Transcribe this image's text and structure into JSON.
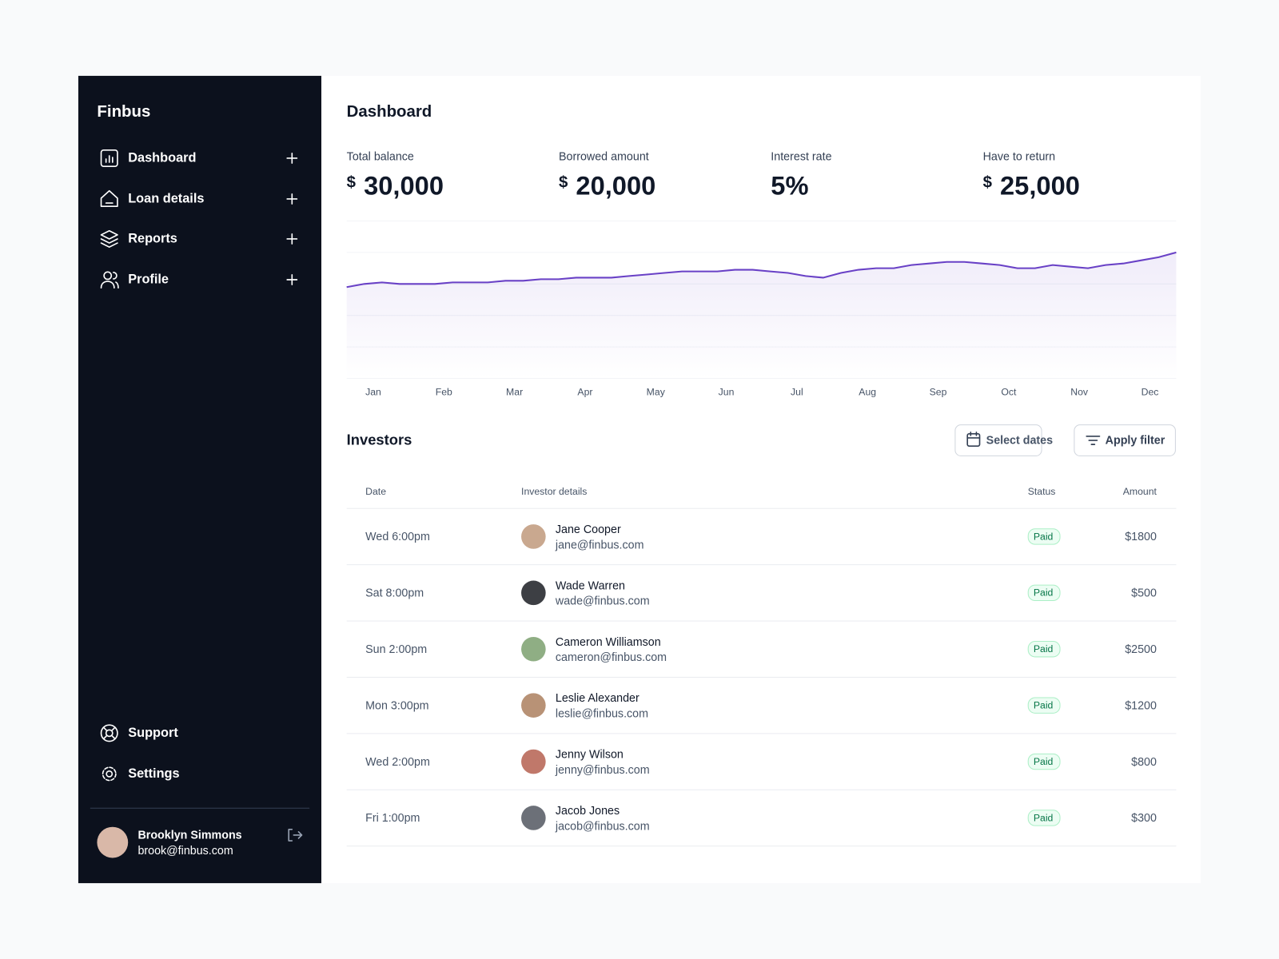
{
  "sidebar": {
    "brand": "Finbus",
    "nav": [
      "Dashboard",
      "Loan details",
      "Reports",
      "Profile"
    ],
    "footer_nav": [
      "Support",
      "Settings"
    ],
    "user": {
      "name": "Brooklyn Simmons",
      "email": "brook@finbus.com"
    }
  },
  "header": {
    "title": "Dashboard"
  },
  "stats": [
    {
      "label": "Total balance",
      "currency": "$",
      "value": "30,000"
    },
    {
      "label": "Borrowed amount",
      "currency": "$",
      "value": "20,000"
    },
    {
      "label": "Interest rate",
      "value": "5%"
    },
    {
      "label": "Have to return",
      "currency": "$",
      "value": "25,000"
    }
  ],
  "chart_data": {
    "type": "area",
    "color": "#6941c6",
    "ylim": [
      0,
      100
    ],
    "categories": [
      null,
      "Jan",
      null,
      null,
      null,
      "Feb",
      null,
      null,
      null,
      "Mar",
      null,
      null,
      null,
      "Apr",
      null,
      null,
      null,
      "May",
      null,
      null,
      null,
      "Jun",
      null,
      null,
      null,
      "Jul",
      null,
      null,
      null,
      "Aug",
      null,
      null,
      null,
      "Sep",
      null,
      null,
      null,
      "Oct",
      null,
      null,
      null,
      "Nov",
      null,
      null,
      null,
      "Dec",
      null,
      null
    ],
    "values": [
      58,
      60,
      61,
      60,
      60,
      60,
      61,
      61,
      61,
      62,
      62,
      63,
      63,
      64,
      64,
      64,
      65,
      66,
      67,
      68,
      68,
      68,
      69,
      69,
      68,
      67,
      65,
      64,
      67,
      69,
      70,
      70,
      72,
      73,
      74,
      74,
      73,
      72,
      70,
      70,
      72,
      71,
      70,
      72,
      73,
      75,
      77,
      80
    ]
  },
  "investors": {
    "title": "Investors",
    "buttons": [
      "Select dates",
      "Apply filter"
    ],
    "table": {
      "columns": [
        "Date",
        "Investor details",
        "Status",
        "Amount"
      ],
      "rows": [
        {
          "date": "Wed 6:00pm",
          "name": "Jane Cooper",
          "email": "jane@finbus.com",
          "status": "Paid",
          "amount": "$1800"
        },
        {
          "date": "Sat 8:00pm",
          "name": "Wade Warren",
          "email": "wade@finbus.com",
          "status": "Paid",
          "amount": "$500"
        },
        {
          "date": "Sun 2:00pm",
          "name": "Cameron Williamson",
          "email": "cameron@finbus.com",
          "status": "Paid",
          "amount": "$2500"
        },
        {
          "date": "Mon 3:00pm",
          "name": "Leslie Alexander",
          "email": "leslie@finbus.com",
          "status": "Paid",
          "amount": "$1200"
        },
        {
          "date": "Wed 2:00pm",
          "name": "Jenny Wilson",
          "email": "jenny@finbus.com",
          "status": "Paid",
          "amount": "$800"
        },
        {
          "date": "Fri 1:00pm",
          "name": "Jacob Jones",
          "email": "jacob@finbus.com",
          "status": "Paid",
          "amount": "$300"
        }
      ]
    }
  }
}
